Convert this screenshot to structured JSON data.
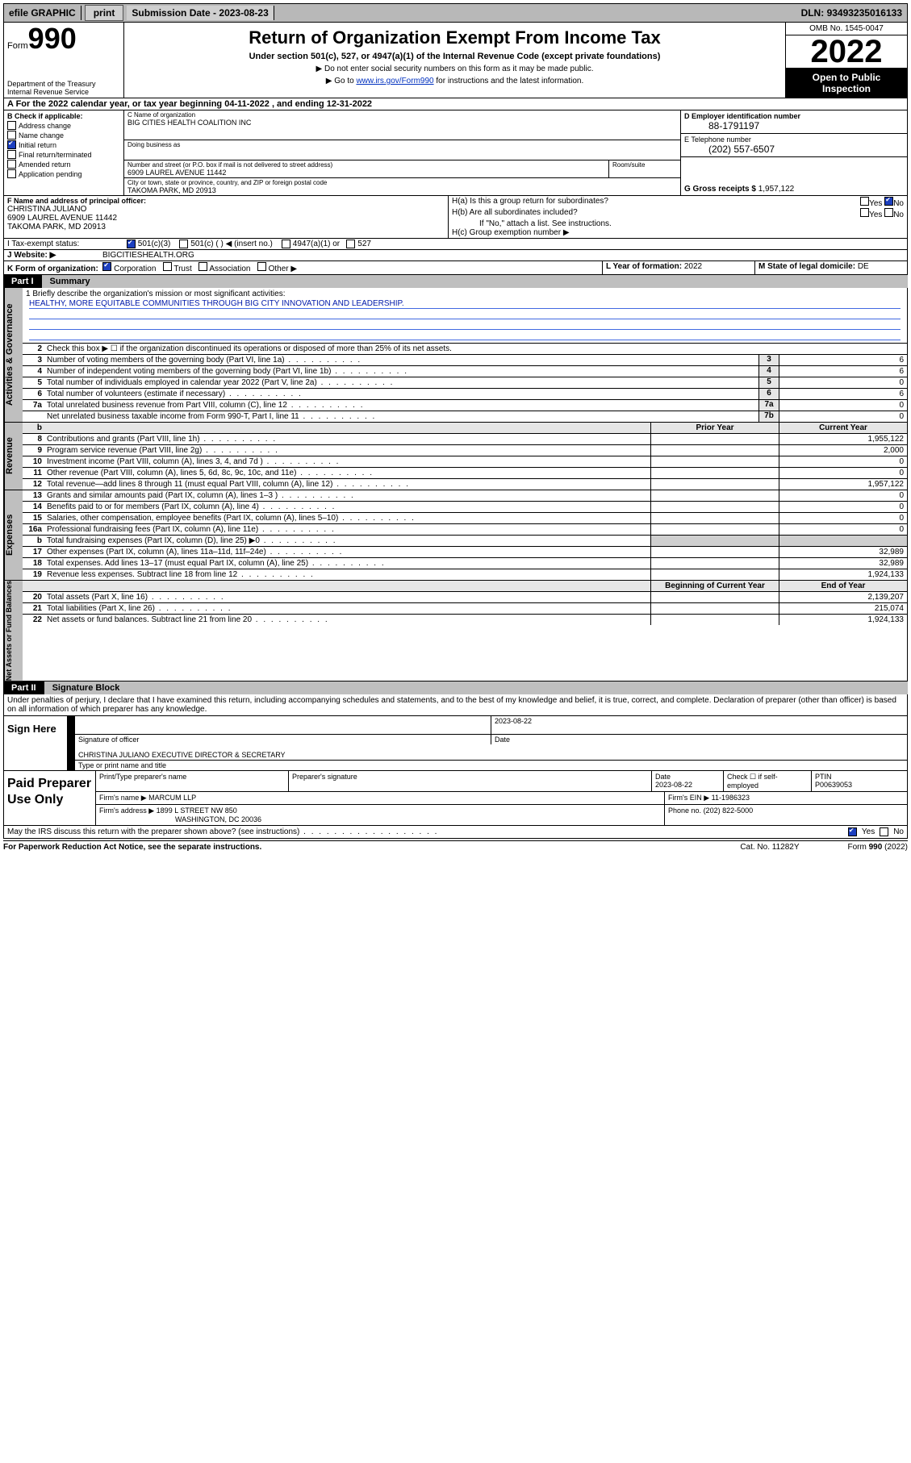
{
  "topbar": {
    "efile": "efile GRAPHIC",
    "print": "print",
    "subdate_label": "Submission Date - ",
    "subdate": "2023-08-23",
    "dln_label": "DLN: ",
    "dln": "93493235016133"
  },
  "header": {
    "form_prefix": "Form",
    "form_number": "990",
    "title": "Return of Organization Exempt From Income Tax",
    "subtitle": "Under section 501(c), 527, or 4947(a)(1) of the Internal Revenue Code (except private foundations)",
    "note1": "Do not enter social security numbers on this form as it may be made public.",
    "note2_prefix": "Go to ",
    "note2_link": "www.irs.gov/Form990",
    "note2_suffix": " for instructions and the latest information.",
    "omb": "OMB No. 1545-0047",
    "year": "2022",
    "inspect1": "Open to Public",
    "inspect2": "Inspection",
    "dept": "Department of the Treasury",
    "irs": "Internal Revenue Service"
  },
  "taxyear": {
    "a_prefix": "A For the 2022 calendar year, or tax year beginning ",
    "begin": "04-11-2022",
    "mid": " , and ending ",
    "end": "12-31-2022"
  },
  "checkB": {
    "label": "B Check if applicable:",
    "items": [
      "Address change",
      "Name change",
      "Initial return",
      "Final return/terminated",
      "Amended return",
      "Application pending"
    ],
    "checked_index": 2
  },
  "org": {
    "c_label": "C Name of organization",
    "name": "BIG CITIES HEALTH COALITION INC",
    "dba_label": "Doing business as",
    "addr_label": "Number and street (or P.O. box if mail is not delivered to street address)",
    "room_label": "Room/suite",
    "addr": "6909 LAUREL AVENUE 11442",
    "city_label": "City or town, state or province, country, and ZIP or foreign postal code",
    "city": "TAKOMA PARK, MD  20913"
  },
  "right": {
    "d_label": "D Employer identification number",
    "ein": "88-1791197",
    "e_label": "E Telephone number",
    "phone": "(202) 557-6507",
    "g_label": "G Gross receipts $ ",
    "gross": "1,957,122"
  },
  "officer": {
    "f_label": "F Name and address of principal officer:",
    "name": "CHRISTINA JULIANO",
    "addr1": "6909 LAUREL AVENUE 11442",
    "addr2": "TAKOMA PARK, MD  20913"
  },
  "groupH": {
    "ha": "H(a)  Is this a group return for subordinates?",
    "hb": "H(b)  Are all subordinates included?",
    "hb_note": "If \"No,\" attach a list. See instructions.",
    "hc": "H(c)  Group exemption number ▶",
    "yes": "Yes",
    "no": "No"
  },
  "taxexempt": {
    "i_label": "I     Tax-exempt status:",
    "opt1": "501(c)(3)",
    "opt2": "501(c) (   ) ◀ (insert no.)",
    "opt3": "4947(a)(1) or",
    "opt4": "527"
  },
  "website": {
    "j_label": "J     Website: ▶",
    "url": "BIGCITIESHEALTH.ORG"
  },
  "formorg": {
    "k_label": "K Form of organization:",
    "opts": [
      "Corporation",
      "Trust",
      "Association",
      "Other ▶"
    ],
    "l_label": "L Year of formation: ",
    "l_val": "2022",
    "m_label": "M State of legal domicile: ",
    "m_val": "DE"
  },
  "parts": {
    "p1": "Part I",
    "p1t": "Summary",
    "p2": "Part II",
    "p2t": "Signature Block"
  },
  "mission": {
    "prompt": "1   Briefly describe the organization's mission or most significant activities:",
    "text": "HEALTHY, MORE EQUITABLE COMMUNITIES THROUGH BIG CITY INNOVATION AND LEADERSHIP."
  },
  "vtabs": {
    "gov": "Activities & Governance",
    "rev": "Revenue",
    "exp": "Expenses",
    "net": "Net Assets or Fund Balances"
  },
  "gov_rows": [
    {
      "n": "2",
      "d": "Check this box ▶ ☐  if the organization discontinued its operations or disposed of more than 25% of its net assets.",
      "idx": "",
      "v": ""
    },
    {
      "n": "3",
      "d": "Number of voting members of the governing body (Part VI, line 1a)",
      "idx": "3",
      "v": "6"
    },
    {
      "n": "4",
      "d": "Number of independent voting members of the governing body (Part VI, line 1b)",
      "idx": "4",
      "v": "6"
    },
    {
      "n": "5",
      "d": "Total number of individuals employed in calendar year 2022 (Part V, line 2a)",
      "idx": "5",
      "v": "0"
    },
    {
      "n": "6",
      "d": "Total number of volunteers (estimate if necessary)",
      "idx": "6",
      "v": "6"
    },
    {
      "n": "7a",
      "d": "Total unrelated business revenue from Part VIII, column (C), line 12",
      "idx": "7a",
      "v": "0"
    },
    {
      "n": "",
      "d": "Net unrelated business taxable income from Form 990-T, Part I, line 11",
      "idx": "7b",
      "v": "0"
    }
  ],
  "table_headers": {
    "b": "b",
    "prior": "Prior Year",
    "cur": "Current Year",
    "begin": "Beginning of Current Year",
    "end": "End of Year"
  },
  "rev_rows": [
    {
      "n": "8",
      "d": "Contributions and grants (Part VIII, line 1h)",
      "p": "",
      "c": "1,955,122"
    },
    {
      "n": "9",
      "d": "Program service revenue (Part VIII, line 2g)",
      "p": "",
      "c": "2,000"
    },
    {
      "n": "10",
      "d": "Investment income (Part VIII, column (A), lines 3, 4, and 7d )",
      "p": "",
      "c": "0"
    },
    {
      "n": "11",
      "d": "Other revenue (Part VIII, column (A), lines 5, 6d, 8c, 9c, 10c, and 11e)",
      "p": "",
      "c": "0"
    },
    {
      "n": "12",
      "d": "Total revenue—add lines 8 through 11 (must equal Part VIII, column (A), line 12)",
      "p": "",
      "c": "1,957,122"
    }
  ],
  "exp_rows": [
    {
      "n": "13",
      "d": "Grants and similar amounts paid (Part IX, column (A), lines 1–3 )",
      "p": "",
      "c": "0"
    },
    {
      "n": "14",
      "d": "Benefits paid to or for members (Part IX, column (A), line 4)",
      "p": "",
      "c": "0"
    },
    {
      "n": "15",
      "d": "Salaries, other compensation, employee benefits (Part IX, column (A), lines 5–10)",
      "p": "",
      "c": "0"
    },
    {
      "n": "16a",
      "d": "Professional fundraising fees (Part IX, column (A), line 11e)",
      "p": "",
      "c": "0"
    },
    {
      "n": "b",
      "d": "Total fundraising expenses (Part IX, column (D), line 25) ▶0",
      "p": "—",
      "c": "—"
    },
    {
      "n": "17",
      "d": "Other expenses (Part IX, column (A), lines 11a–11d, 11f–24e)",
      "p": "",
      "c": "32,989"
    },
    {
      "n": "18",
      "d": "Total expenses. Add lines 13–17 (must equal Part IX, column (A), line 25)",
      "p": "",
      "c": "32,989"
    },
    {
      "n": "19",
      "d": "Revenue less expenses. Subtract line 18 from line 12",
      "p": "",
      "c": "1,924,133"
    }
  ],
  "net_rows": [
    {
      "n": "20",
      "d": "Total assets (Part X, line 16)",
      "p": "",
      "c": "2,139,207"
    },
    {
      "n": "21",
      "d": "Total liabilities (Part X, line 26)",
      "p": "",
      "c": "215,074"
    },
    {
      "n": "22",
      "d": "Net assets or fund balances. Subtract line 21 from line 20",
      "p": "",
      "c": "1,924,133"
    }
  ],
  "decl": "Under penalties of perjury, I declare that I have examined this return, including accompanying schedules and statements, and to the best of my knowledge and belief, it is true, correct, and complete. Declaration of preparer (other than officer) is based on all information of which preparer has any knowledge.",
  "sign": {
    "here": "Sign Here",
    "sig_label": "Signature of officer",
    "date_label": "Date",
    "date": "2023-08-22",
    "name": "CHRISTINA JULIANO  EXECUTIVE DIRECTOR & SECRETARY",
    "name_label": "Type or print name and title"
  },
  "paid": {
    "title": "Paid Preparer Use Only",
    "h1": "Print/Type preparer's name",
    "h2": "Preparer's signature",
    "h3": "Date",
    "h4": "Check ☐ if self-employed",
    "h5": "PTIN",
    "date": "2023-08-22",
    "ptin": "P00639053",
    "firm_label": "Firm's name   ▶",
    "firm": "MARCUM LLP",
    "ein_label": "Firm's EIN ▶",
    "ein": "11-1986323",
    "addr_label": "Firm's address ▶",
    "addr1": "1899 L STREET NW 850",
    "addr2": "WASHINGTON, DC  20036",
    "phone_label": "Phone no.",
    "phone": "(202) 822-5000"
  },
  "discuss": {
    "q": "May the IRS discuss this return with the preparer shown above? (see instructions)",
    "yes": "Yes",
    "no": "No"
  },
  "footer": {
    "f1": "For Paperwork Reduction Act Notice, see the separate instructions.",
    "f2": "Cat. No. 11282Y",
    "f3a": "Form ",
    "f3b": "990",
    "f3c": " (2022)"
  }
}
